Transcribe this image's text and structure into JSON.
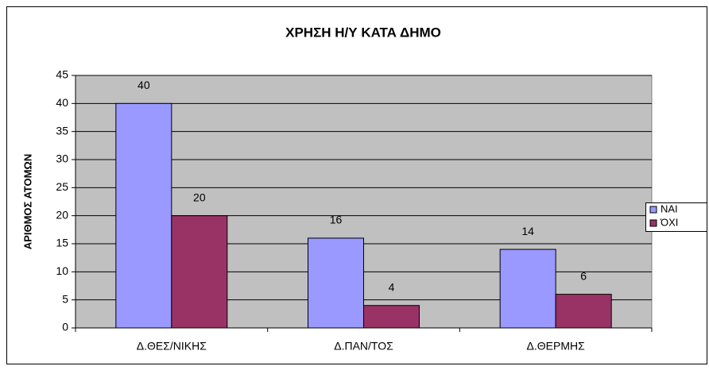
{
  "chart_data": {
    "type": "bar",
    "title": "ΧΡΗΣΗ Η/Υ ΚΑΤΑ ΔΗΜΟ",
    "y_label": "ΑΡΙΘΜΟΣ ΑΤΟΜΩΝ",
    "categories": [
      "Δ.ΘΕΣ/ΝΙΚΗΣ",
      "Δ.ΠΑΝ/ΤΟΣ",
      "Δ.ΘΕΡΜΗΣ"
    ],
    "series": [
      {
        "name": "ΝΑΙ",
        "color": "#9999ff",
        "values": [
          40,
          16,
          14
        ]
      },
      {
        "name": "ΌΧΙ",
        "color": "#993366",
        "values": [
          20,
          4,
          6
        ]
      }
    ],
    "ylim": [
      0,
      45
    ],
    "yticks": [
      0,
      5,
      10,
      15,
      20,
      25,
      30,
      35,
      40,
      45
    ],
    "grid": true,
    "legend": "right",
    "plot_background": "#c0c0c0"
  }
}
